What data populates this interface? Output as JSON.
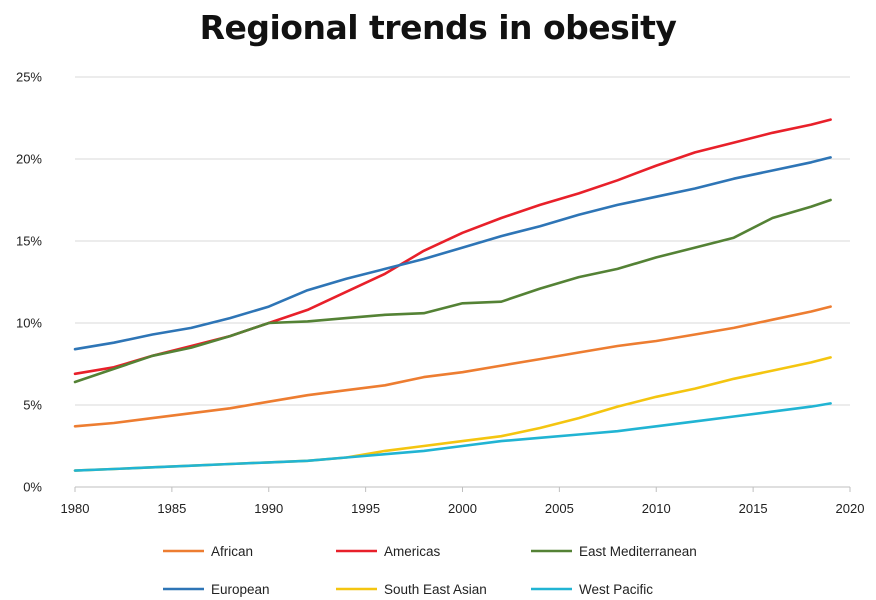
{
  "chart_data": {
    "type": "line",
    "title": "Regional trends in obesity",
    "xlabel": "",
    "ylabel": "",
    "xlim": [
      1980,
      2020
    ],
    "ylim": [
      0,
      25
    ],
    "x_ticks": [
      "1980",
      "1985",
      "1990",
      "1995",
      "2000",
      "2005",
      "2010",
      "2015",
      "2020"
    ],
    "y_ticks": [
      "0%",
      "5%",
      "10%",
      "15%",
      "20%",
      "25%"
    ],
    "grid": "horizontal",
    "legend_position": "bottom",
    "series": [
      {
        "name": "African",
        "color": "#ED7D31",
        "x": [
          1980,
          1982,
          1984,
          1986,
          1988,
          1990,
          1992,
          1994,
          1996,
          1998,
          2000,
          2002,
          2004,
          2006,
          2008,
          2010,
          2012,
          2014,
          2016,
          2018,
          2019
        ],
        "values": [
          3.7,
          3.9,
          4.2,
          4.5,
          4.8,
          5.2,
          5.6,
          5.9,
          6.2,
          6.7,
          7.0,
          7.4,
          7.8,
          8.2,
          8.6,
          8.9,
          9.3,
          9.7,
          10.2,
          10.7,
          11.0
        ]
      },
      {
        "name": "Americas",
        "color": "#E8202A",
        "x": [
          1980,
          1982,
          1984,
          1986,
          1988,
          1990,
          1992,
          1994,
          1996,
          1998,
          2000,
          2002,
          2004,
          2006,
          2008,
          2010,
          2012,
          2014,
          2016,
          2018,
          2019
        ],
        "values": [
          6.9,
          7.3,
          8.0,
          8.6,
          9.2,
          10.0,
          10.8,
          11.9,
          13.0,
          14.4,
          15.5,
          16.4,
          17.2,
          17.9,
          18.7,
          19.6,
          20.4,
          21.0,
          21.6,
          22.1,
          22.4
        ]
      },
      {
        "name": "East Mediterranean",
        "color": "#548235",
        "x": [
          1980,
          1982,
          1984,
          1986,
          1988,
          1990,
          1992,
          1994,
          1996,
          1998,
          2000,
          2002,
          2004,
          2006,
          2008,
          2010,
          2012,
          2014,
          2016,
          2018,
          2019
        ],
        "values": [
          6.4,
          7.2,
          8.0,
          8.5,
          9.2,
          10.0,
          10.1,
          10.3,
          10.5,
          10.6,
          11.2,
          11.3,
          12.1,
          12.8,
          13.3,
          14.0,
          14.6,
          15.2,
          16.4,
          17.1,
          17.5
        ]
      },
      {
        "name": "European",
        "color": "#2E75B6",
        "x": [
          1980,
          1982,
          1984,
          1986,
          1988,
          1990,
          1992,
          1994,
          1996,
          1998,
          2000,
          2002,
          2004,
          2006,
          2008,
          2010,
          2012,
          2014,
          2016,
          2018,
          2019
        ],
        "values": [
          8.4,
          8.8,
          9.3,
          9.7,
          10.3,
          11.0,
          12.0,
          12.7,
          13.3,
          13.9,
          14.6,
          15.3,
          15.9,
          16.6,
          17.2,
          17.7,
          18.2,
          18.8,
          19.3,
          19.8,
          20.1
        ]
      },
      {
        "name": "South East Asian",
        "color": "#F4C510",
        "x": [
          1980,
          1982,
          1984,
          1986,
          1988,
          1990,
          1992,
          1994,
          1996,
          1998,
          2000,
          2002,
          2004,
          2006,
          2008,
          2010,
          2012,
          2014,
          2016,
          2018,
          2019
        ],
        "values": [
          1.0,
          1.1,
          1.2,
          1.3,
          1.4,
          1.5,
          1.6,
          1.8,
          2.2,
          2.5,
          2.8,
          3.1,
          3.6,
          4.2,
          4.9,
          5.5,
          6.0,
          6.6,
          7.1,
          7.6,
          7.9
        ]
      },
      {
        "name": "West Pacific",
        "color": "#21B4D3",
        "x": [
          1980,
          1982,
          1984,
          1986,
          1988,
          1990,
          1992,
          1994,
          1996,
          1998,
          2000,
          2002,
          2004,
          2006,
          2008,
          2010,
          2012,
          2014,
          2016,
          2018,
          2019
        ],
        "values": [
          1.0,
          1.1,
          1.2,
          1.3,
          1.4,
          1.5,
          1.6,
          1.8,
          2.0,
          2.2,
          2.5,
          2.8,
          3.0,
          3.2,
          3.4,
          3.7,
          4.0,
          4.3,
          4.6,
          4.9,
          5.1
        ]
      }
    ]
  }
}
